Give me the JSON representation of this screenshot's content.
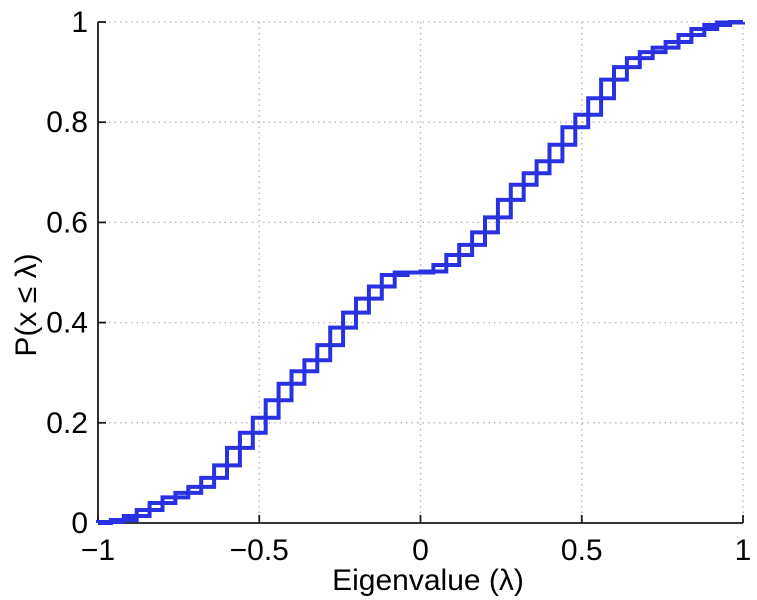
{
  "chart_data": {
    "type": "line",
    "subtype": "staircase-empirical-cdf",
    "title": "",
    "xlabel": "Eigenvalue (λ)",
    "ylabel": "P(x ≤ λ)",
    "xlim": [
      -1,
      1
    ],
    "ylim": [
      0,
      1
    ],
    "x_tick_values": [
      -1,
      -0.5,
      0,
      0.5,
      1
    ],
    "x_tick_labels": [
      "−1",
      "−0.5",
      "0",
      "0.5",
      "1"
    ],
    "y_tick_values": [
      0,
      0.2,
      0.4,
      0.6,
      0.8,
      1
    ],
    "y_tick_labels": [
      "0",
      "0.2",
      "0.4",
      "0.6",
      "0.8",
      "1"
    ],
    "grid": {
      "style": "dotted",
      "color": "#b3b3b3"
    },
    "legend": "none",
    "line_color": "#2832e2",
    "line_width": 4,
    "axis_color": "#1a1a1a",
    "x": [
      -1.0,
      -0.96,
      -0.92,
      -0.88,
      -0.84,
      -0.8,
      -0.76,
      -0.72,
      -0.68,
      -0.64,
      -0.6,
      -0.56,
      -0.52,
      -0.48,
      -0.44,
      -0.4,
      -0.36,
      -0.32,
      -0.28,
      -0.24,
      -0.2,
      -0.16,
      -0.12,
      -0.08,
      -0.04,
      0.0,
      0.04,
      0.08,
      0.12,
      0.16,
      0.2,
      0.24,
      0.28,
      0.32,
      0.36,
      0.4,
      0.44,
      0.48,
      0.52,
      0.56,
      0.6,
      0.64,
      0.68,
      0.72,
      0.76,
      0.8,
      0.84,
      0.88,
      0.92,
      0.96,
      1.0
    ],
    "cdf": [
      0.0,
      0.002,
      0.006,
      0.014,
      0.026,
      0.04,
      0.051,
      0.06,
      0.072,
      0.09,
      0.115,
      0.15,
      0.18,
      0.21,
      0.245,
      0.278,
      0.303,
      0.325,
      0.355,
      0.39,
      0.42,
      0.448,
      0.472,
      0.495,
      0.5,
      0.5,
      0.502,
      0.515,
      0.535,
      0.555,
      0.58,
      0.61,
      0.645,
      0.675,
      0.698,
      0.722,
      0.755,
      0.79,
      0.815,
      0.848,
      0.885,
      0.91,
      0.928,
      0.94,
      0.949,
      0.96,
      0.974,
      0.986,
      0.994,
      0.999,
      1.0
    ],
    "series": [
      {
        "name": "cdf-stairs-post-step"
      },
      {
        "name": "cdf-stairs-pre-step"
      }
    ]
  }
}
